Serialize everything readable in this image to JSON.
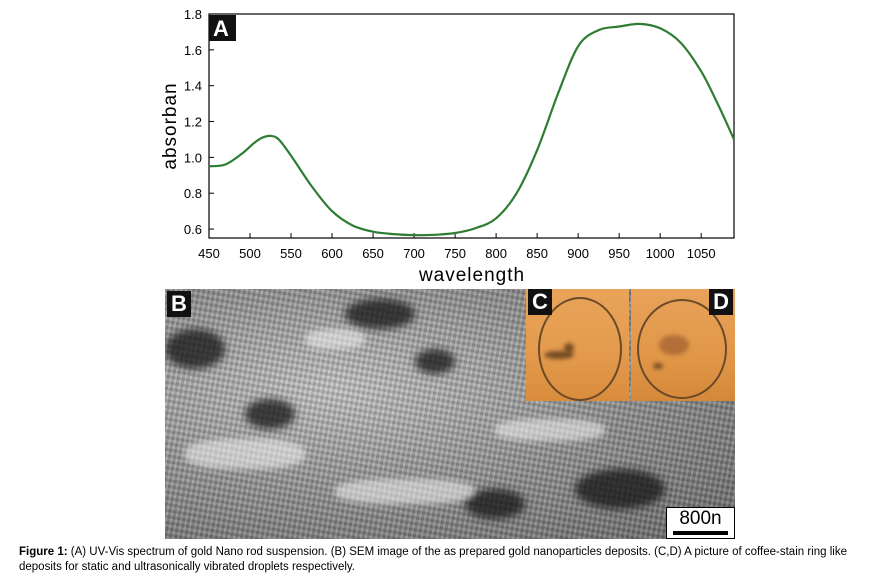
{
  "chart_data": {
    "type": "line",
    "panel_label": "A",
    "xlabel": "wavelength",
    "ylabel": "absorban",
    "xlim": [
      450,
      1090
    ],
    "ylim": [
      0.55,
      1.8
    ],
    "xticks": [
      450,
      500,
      550,
      600,
      650,
      700,
      750,
      800,
      850,
      900,
      950,
      1000,
      1050
    ],
    "yticks": [
      0.6,
      0.8,
      1.0,
      1.2,
      1.4,
      1.6,
      1.8
    ],
    "ytick_labels": [
      "0.6",
      "0.8",
      "1.0",
      "1.2",
      "1.4",
      "1.6",
      "1.8"
    ],
    "color": "#2e7d32",
    "series": [
      {
        "x": [
          450,
          470,
          490,
          505,
          515,
          525,
          535,
          550,
          575,
          600,
          625,
          650,
          675,
          700,
          725,
          750,
          775,
          800,
          825,
          850,
          875,
          900,
          925,
          950,
          975,
          1000,
          1025,
          1050,
          1070,
          1090
        ],
        "values": [
          0.95,
          0.96,
          1.02,
          1.08,
          1.11,
          1.12,
          1.1,
          1.01,
          0.84,
          0.7,
          0.62,
          0.585,
          0.572,
          0.566,
          0.568,
          0.578,
          0.605,
          0.66,
          0.8,
          1.04,
          1.35,
          1.62,
          1.71,
          1.73,
          1.745,
          1.72,
          1.64,
          1.48,
          1.3,
          1.1
        ]
      }
    ]
  },
  "panels": {
    "b_label": "B",
    "c_label": "C",
    "d_label": "D",
    "scale_bar": "800n"
  },
  "caption": {
    "lead": "Figure 1:",
    "text": " (A) UV-Vis spectrum of gold Nano rod suspension. (B) SEM image of the as prepared gold nanoparticles deposits. (C,D) A picture of coffee-stain ring like deposits for static and ultrasonically vibrated droplets respectively."
  }
}
